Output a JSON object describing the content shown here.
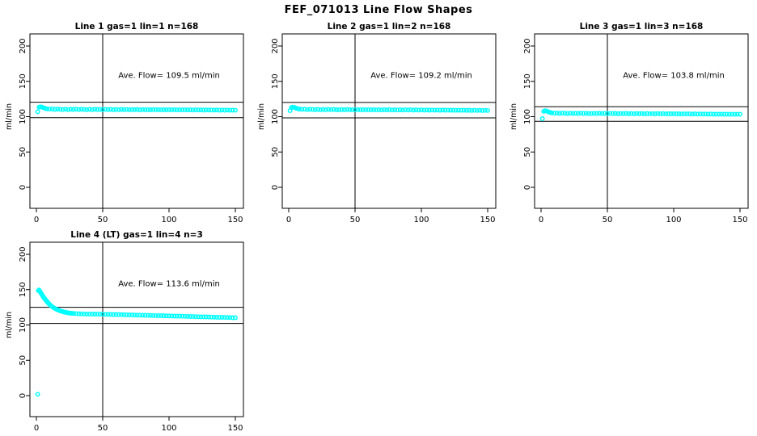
{
  "page": {
    "title": "FEF_071013  Line Flow Shapes"
  },
  "colors": {
    "points": "#00ffff",
    "axis": "#000000",
    "background": "#ffffff",
    "text": "#000000"
  },
  "chart_data": [
    {
      "type": "scatter",
      "title": "Line 1 gas=1 lin=1 n=168",
      "annotation": "Ave. Flow=  109.5  ml/min",
      "ave_flow": 109.5,
      "ylabel": "ml/min",
      "xlim": [
        0,
        150
      ],
      "ylim": [
        0,
        200
      ],
      "xticks": [
        0,
        50,
        100,
        150
      ],
      "yticks": [
        0,
        50,
        100,
        150,
        200
      ],
      "vline_x": 50,
      "hlines": [
        120.5,
        98.6
      ],
      "points": [
        [
          1,
          107.0
        ],
        [
          2,
          113.4
        ],
        [
          3,
          114.0
        ],
        [
          4,
          113.6
        ],
        [
          5,
          112.9
        ],
        [
          6,
          112.2
        ],
        [
          7,
          111.6
        ],
        [
          8,
          111.1
        ],
        [
          10,
          110.7
        ],
        [
          12,
          110.9
        ],
        [
          14,
          110.3
        ],
        [
          16,
          110.8
        ],
        [
          18,
          110.4
        ],
        [
          20,
          110.1
        ],
        [
          22,
          110.6
        ],
        [
          24,
          110.0
        ],
        [
          26,
          110.5
        ],
        [
          28,
          110.3
        ],
        [
          30,
          110.6
        ],
        [
          32,
          110.1
        ],
        [
          34,
          110.5
        ],
        [
          36,
          110.2
        ],
        [
          38,
          109.9
        ],
        [
          40,
          110.4
        ],
        [
          42,
          110.0
        ],
        [
          44,
          110.5
        ],
        [
          46,
          110.2
        ],
        [
          48,
          110.3
        ],
        [
          50,
          109.9
        ],
        [
          52,
          110.4
        ],
        [
          54,
          110.1
        ],
        [
          56,
          110.3
        ],
        [
          58,
          109.8
        ],
        [
          60,
          110.2
        ],
        [
          62,
          110.0
        ],
        [
          64,
          110.3
        ],
        [
          66,
          109.9
        ],
        [
          68,
          110.2
        ],
        [
          70,
          109.8
        ],
        [
          72,
          110.1
        ],
        [
          74,
          109.9
        ],
        [
          76,
          110.2
        ],
        [
          78,
          109.7
        ],
        [
          80,
          110.1
        ],
        [
          82,
          109.8
        ],
        [
          84,
          110.0
        ],
        [
          86,
          109.7
        ],
        [
          88,
          110.1
        ],
        [
          90,
          109.8
        ],
        [
          92,
          110.0
        ],
        [
          94,
          109.6
        ],
        [
          96,
          110.0
        ],
        [
          98,
          109.7
        ],
        [
          100,
          109.9
        ],
        [
          102,
          109.6
        ],
        [
          104,
          109.9
        ],
        [
          106,
          109.5
        ],
        [
          108,
          109.8
        ],
        [
          110,
          109.6
        ],
        [
          112,
          109.8
        ],
        [
          114,
          109.5
        ],
        [
          116,
          109.7
        ],
        [
          118,
          109.4
        ],
        [
          120,
          109.7
        ],
        [
          122,
          109.5
        ],
        [
          124,
          109.6
        ],
        [
          126,
          109.3
        ],
        [
          128,
          109.6
        ],
        [
          130,
          109.4
        ],
        [
          132,
          109.5
        ],
        [
          134,
          109.3
        ],
        [
          136,
          109.5
        ],
        [
          138,
          109.2
        ],
        [
          140,
          109.4
        ],
        [
          142,
          109.2
        ],
        [
          144,
          109.4
        ],
        [
          146,
          109.1
        ],
        [
          148,
          109.3
        ],
        [
          150,
          109.2
        ]
      ]
    },
    {
      "type": "scatter",
      "title": "Line 2 gas=1 lin=2 n=168",
      "annotation": "Ave. Flow=  109.2  ml/min",
      "ave_flow": 109.2,
      "ylabel": "ml/min",
      "xlim": [
        0,
        150
      ],
      "ylim": [
        0,
        200
      ],
      "xticks": [
        0,
        50,
        100,
        150
      ],
      "yticks": [
        0,
        50,
        100,
        150,
        200
      ],
      "vline_x": 50,
      "hlines": [
        120.1,
        98.3
      ],
      "points": [
        [
          1,
          108.4
        ],
        [
          2,
          112.9
        ],
        [
          3,
          113.5
        ],
        [
          4,
          113.1
        ],
        [
          5,
          112.4
        ],
        [
          6,
          111.7
        ],
        [
          7,
          111.2
        ],
        [
          8,
          110.8
        ],
        [
          10,
          110.4
        ],
        [
          12,
          110.6
        ],
        [
          14,
          110.1
        ],
        [
          16,
          110.5
        ],
        [
          18,
          110.2
        ],
        [
          20,
          109.9
        ],
        [
          22,
          110.3
        ],
        [
          24,
          109.8
        ],
        [
          26,
          110.2
        ],
        [
          28,
          110.0
        ],
        [
          30,
          110.3
        ],
        [
          32,
          109.9
        ],
        [
          34,
          110.2
        ],
        [
          36,
          109.9
        ],
        [
          38,
          109.7
        ],
        [
          40,
          110.1
        ],
        [
          42,
          109.8
        ],
        [
          44,
          110.2
        ],
        [
          46,
          109.9
        ],
        [
          48,
          110.0
        ],
        [
          50,
          109.7
        ],
        [
          52,
          110.1
        ],
        [
          54,
          109.8
        ],
        [
          56,
          110.0
        ],
        [
          58,
          109.6
        ],
        [
          60,
          109.9
        ],
        [
          62,
          109.7
        ],
        [
          64,
          110.0
        ],
        [
          66,
          109.6
        ],
        [
          68,
          109.9
        ],
        [
          70,
          109.5
        ],
        [
          72,
          109.8
        ],
        [
          74,
          109.6
        ],
        [
          76,
          109.9
        ],
        [
          78,
          109.4
        ],
        [
          80,
          109.8
        ],
        [
          82,
          109.5
        ],
        [
          84,
          109.7
        ],
        [
          86,
          109.4
        ],
        [
          88,
          109.8
        ],
        [
          90,
          109.5
        ],
        [
          92,
          109.7
        ],
        [
          94,
          109.3
        ],
        [
          96,
          109.6
        ],
        [
          98,
          109.4
        ],
        [
          100,
          109.6
        ],
        [
          102,
          109.3
        ],
        [
          104,
          109.5
        ],
        [
          106,
          109.2
        ],
        [
          108,
          109.5
        ],
        [
          110,
          109.3
        ],
        [
          112,
          109.4
        ],
        [
          114,
          109.1
        ],
        [
          116,
          109.4
        ],
        [
          118,
          109.1
        ],
        [
          120,
          109.3
        ],
        [
          122,
          109.1
        ],
        [
          124,
          109.2
        ],
        [
          126,
          109.0
        ],
        [
          128,
          109.2
        ],
        [
          130,
          109.0
        ],
        [
          132,
          109.1
        ],
        [
          134,
          108.9
        ],
        [
          136,
          109.1
        ],
        [
          138,
          108.8
        ],
        [
          140,
          109.0
        ],
        [
          142,
          108.8
        ],
        [
          144,
          109.0
        ],
        [
          146,
          108.7
        ],
        [
          148,
          108.9
        ],
        [
          150,
          108.8
        ]
      ]
    },
    {
      "type": "scatter",
      "title": "Line 3 gas=1 lin=3 n=168",
      "annotation": "Ave. Flow=  103.8  ml/min",
      "ave_flow": 103.8,
      "ylabel": "ml/min",
      "xlim": [
        0,
        150
      ],
      "ylim": [
        0,
        200
      ],
      "xticks": [
        0,
        50,
        100,
        150
      ],
      "yticks": [
        0,
        50,
        100,
        150,
        200
      ],
      "vline_x": 50,
      "hlines": [
        114.2,
        93.4
      ],
      "points": [
        [
          1,
          97.2
        ],
        [
          2,
          107.6
        ],
        [
          3,
          108.3
        ],
        [
          4,
          108.0
        ],
        [
          5,
          107.3
        ],
        [
          6,
          106.5
        ],
        [
          7,
          105.9
        ],
        [
          8,
          105.4
        ],
        [
          10,
          105.0
        ],
        [
          12,
          105.2
        ],
        [
          14,
          104.7
        ],
        [
          16,
          105.1
        ],
        [
          18,
          104.8
        ],
        [
          20,
          104.5
        ],
        [
          22,
          104.9
        ],
        [
          24,
          104.4
        ],
        [
          26,
          104.8
        ],
        [
          28,
          104.6
        ],
        [
          30,
          104.9
        ],
        [
          32,
          104.5
        ],
        [
          34,
          104.8
        ],
        [
          36,
          104.5
        ],
        [
          38,
          104.3
        ],
        [
          40,
          104.7
        ],
        [
          42,
          104.4
        ],
        [
          44,
          104.8
        ],
        [
          46,
          104.5
        ],
        [
          48,
          104.6
        ],
        [
          50,
          104.3
        ],
        [
          52,
          104.7
        ],
        [
          54,
          104.4
        ],
        [
          56,
          104.6
        ],
        [
          58,
          104.2
        ],
        [
          60,
          104.5
        ],
        [
          62,
          104.3
        ],
        [
          64,
          104.6
        ],
        [
          66,
          104.2
        ],
        [
          68,
          104.5
        ],
        [
          70,
          104.1
        ],
        [
          72,
          104.4
        ],
        [
          74,
          104.2
        ],
        [
          76,
          104.5
        ],
        [
          78,
          104.0
        ],
        [
          80,
          104.4
        ],
        [
          82,
          104.1
        ],
        [
          84,
          104.3
        ],
        [
          86,
          104.0
        ],
        [
          88,
          104.4
        ],
        [
          90,
          104.1
        ],
        [
          92,
          104.3
        ],
        [
          94,
          103.9
        ],
        [
          96,
          104.2
        ],
        [
          98,
          104.0
        ],
        [
          100,
          104.2
        ],
        [
          102,
          103.9
        ],
        [
          104,
          104.1
        ],
        [
          106,
          103.8
        ],
        [
          108,
          104.1
        ],
        [
          110,
          103.9
        ],
        [
          112,
          104.0
        ],
        [
          114,
          103.7
        ],
        [
          116,
          104.0
        ],
        [
          118,
          103.7
        ],
        [
          120,
          103.9
        ],
        [
          122,
          103.7
        ],
        [
          124,
          103.8
        ],
        [
          126,
          103.6
        ],
        [
          128,
          103.8
        ],
        [
          130,
          103.6
        ],
        [
          132,
          103.7
        ],
        [
          134,
          103.5
        ],
        [
          136,
          103.7
        ],
        [
          138,
          103.4
        ],
        [
          140,
          103.6
        ],
        [
          142,
          103.4
        ],
        [
          144,
          103.6
        ],
        [
          146,
          103.3
        ],
        [
          148,
          103.5
        ],
        [
          150,
          103.4
        ]
      ]
    },
    {
      "type": "scatter",
      "title": "Line 4 (LT) gas=1 lin=4 n=3",
      "annotation": "Ave. Flow=  113.6  ml/min",
      "ave_flow": 113.6,
      "ylabel": "ml/min",
      "xlim": [
        0,
        150
      ],
      "ylim": [
        0,
        200
      ],
      "xticks": [
        0,
        50,
        100,
        150
      ],
      "yticks": [
        0,
        50,
        100,
        150,
        200
      ],
      "vline_x": 50,
      "hlines": [
        125.0,
        102.2
      ],
      "points": [
        [
          1,
          2
        ],
        [
          1.5,
          148.5
        ],
        [
          2,
          149.5
        ],
        [
          2.5,
          148.0
        ],
        [
          3,
          146.5
        ],
        [
          3.5,
          145.0
        ],
        [
          4,
          143.5
        ],
        [
          4.5,
          142.0
        ],
        [
          5,
          140.5
        ],
        [
          5.5,
          139.0
        ],
        [
          6,
          137.8
        ],
        [
          6.5,
          136.6
        ],
        [
          7,
          135.4
        ],
        [
          7.5,
          134.2
        ],
        [
          8,
          133.1
        ],
        [
          8.5,
          132.0
        ],
        [
          9,
          131.0
        ],
        [
          9.5,
          130.0
        ],
        [
          10,
          129.0
        ],
        [
          11,
          127.3
        ],
        [
          12,
          125.8
        ],
        [
          13,
          124.5
        ],
        [
          14,
          123.4
        ],
        [
          15,
          122.4
        ],
        [
          16,
          121.5
        ],
        [
          17,
          120.7
        ],
        [
          18,
          120.0
        ],
        [
          19,
          119.4
        ],
        [
          20,
          118.8
        ],
        [
          21,
          118.3
        ],
        [
          22,
          117.9
        ],
        [
          23,
          117.5
        ],
        [
          24,
          117.2
        ],
        [
          25,
          116.9
        ],
        [
          26,
          116.7
        ],
        [
          27,
          116.5
        ],
        [
          28,
          116.3
        ],
        [
          30,
          116.1
        ],
        [
          32,
          115.9
        ],
        [
          34,
          115.8
        ],
        [
          36,
          115.7
        ],
        [
          38,
          115.6
        ],
        [
          40,
          115.5
        ],
        [
          42,
          115.5
        ],
        [
          44,
          115.4
        ],
        [
          46,
          115.3
        ],
        [
          48,
          115.3
        ],
        [
          50,
          115.2
        ],
        [
          52,
          115.1
        ],
        [
          54,
          115.1
        ],
        [
          56,
          115.0
        ],
        [
          58,
          114.9
        ],
        [
          60,
          114.8
        ],
        [
          62,
          114.7
        ],
        [
          64,
          114.6
        ],
        [
          66,
          114.5
        ],
        [
          68,
          114.4
        ],
        [
          70,
          114.3
        ],
        [
          72,
          114.2
        ],
        [
          74,
          114.1
        ],
        [
          76,
          114.0
        ],
        [
          78,
          113.9
        ],
        [
          80,
          113.8
        ],
        [
          82,
          113.7
        ],
        [
          84,
          113.6
        ],
        [
          86,
          113.5
        ],
        [
          88,
          113.4
        ],
        [
          90,
          113.3
        ],
        [
          92,
          113.2
        ],
        [
          94,
          113.1
        ],
        [
          96,
          113.0
        ],
        [
          98,
          112.9
        ],
        [
          100,
          112.8
        ],
        [
          102,
          112.7
        ],
        [
          104,
          112.6
        ],
        [
          106,
          112.5
        ],
        [
          108,
          112.4
        ],
        [
          110,
          112.3
        ],
        [
          112,
          112.2
        ],
        [
          114,
          112.1
        ],
        [
          116,
          112.0
        ],
        [
          118,
          111.9
        ],
        [
          120,
          111.8
        ],
        [
          122,
          111.7
        ],
        [
          124,
          111.6
        ],
        [
          126,
          111.5
        ],
        [
          128,
          111.4
        ],
        [
          130,
          111.3
        ],
        [
          132,
          111.2
        ],
        [
          134,
          111.1
        ],
        [
          136,
          111.0
        ],
        [
          138,
          110.9
        ],
        [
          140,
          110.8
        ],
        [
          142,
          110.7
        ],
        [
          144,
          110.6
        ],
        [
          146,
          110.5
        ],
        [
          148,
          110.4
        ],
        [
          150,
          110.3
        ]
      ]
    }
  ]
}
